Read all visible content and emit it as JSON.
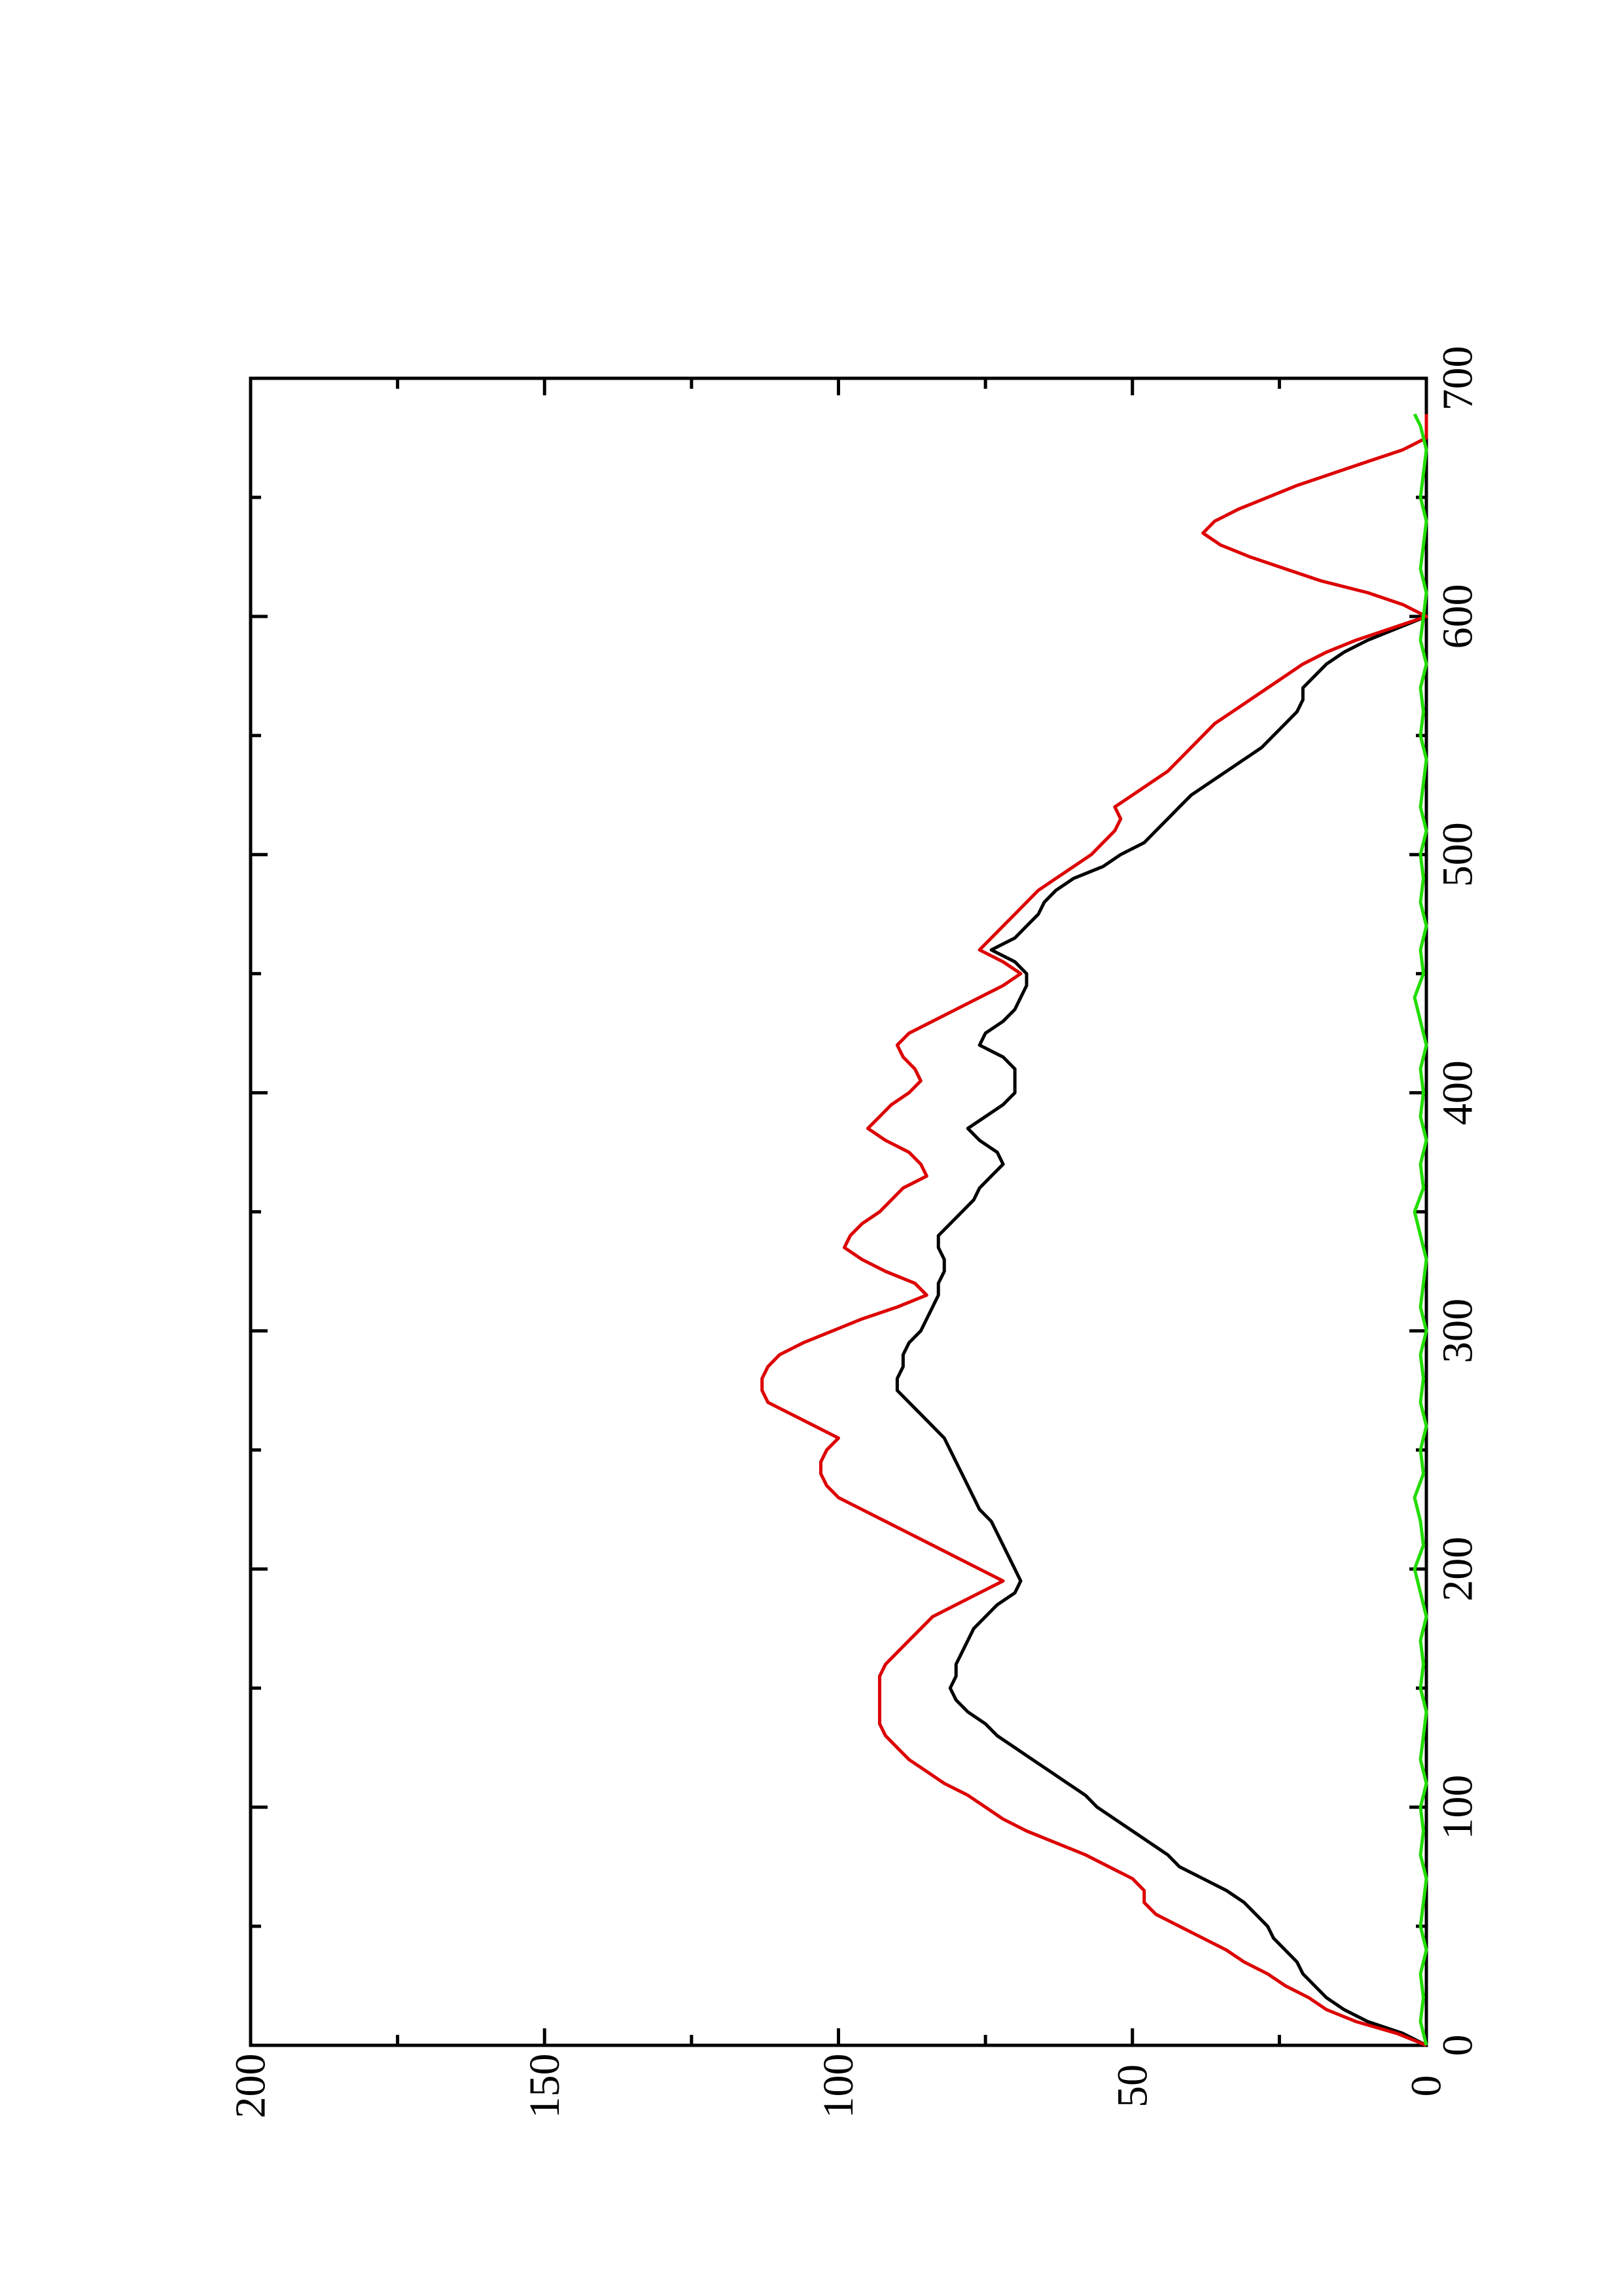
{
  "chart_data": {
    "type": "line",
    "orientation": "rotated-90-ccw",
    "title": "",
    "xlabel": "",
    "ylabel": "",
    "xlim": [
      0,
      700
    ],
    "ylim": [
      0,
      200
    ],
    "x_ticks": [
      0,
      100,
      200,
      300,
      400,
      500,
      600,
      700
    ],
    "y_ticks": [
      0,
      50,
      100,
      150,
      200
    ],
    "x_minor_step": 50,
    "y_minor_step": 25,
    "grid": false,
    "legend": "none",
    "series": [
      {
        "color": "#000000",
        "x": [
          0,
          5,
          10,
          15,
          20,
          25,
          30,
          35,
          40,
          45,
          50,
          55,
          60,
          65,
          70,
          75,
          80,
          85,
          90,
          95,
          100,
          105,
          110,
          115,
          120,
          125,
          130,
          135,
          140,
          145,
          150,
          155,
          160,
          165,
          170,
          175,
          180,
          185,
          190,
          195,
          200,
          205,
          210,
          215,
          220,
          225,
          230,
          235,
          240,
          245,
          250,
          255,
          260,
          265,
          270,
          275,
          280,
          285,
          290,
          295,
          300,
          305,
          310,
          315,
          320,
          325,
          330,
          335,
          340,
          345,
          350,
          355,
          360,
          365,
          370,
          375,
          380,
          385,
          390,
          395,
          400,
          405,
          410,
          415,
          420,
          425,
          430,
          435,
          440,
          445,
          450,
          455,
          460,
          465,
          470,
          475,
          480,
          485,
          490,
          495,
          500,
          505,
          510,
          515,
          520,
          525,
          530,
          535,
          540,
          545,
          550,
          555,
          560,
          565,
          570,
          575,
          580,
          585,
          590,
          595,
          600,
          605,
          610,
          615,
          620,
          625,
          630,
          635,
          640,
          645,
          650,
          655,
          660,
          665,
          670,
          675,
          680,
          685
        ],
        "values": [
          0,
          4,
          10,
          14,
          17,
          19,
          21,
          22,
          24,
          26,
          27,
          29,
          31,
          34,
          38,
          42,
          44,
          47,
          50,
          53,
          56,
          58,
          61,
          64,
          67,
          70,
          73,
          75,
          78,
          80,
          81,
          80,
          80,
          79,
          78,
          77,
          75,
          73,
          70,
          69,
          70,
          71,
          72,
          73,
          74,
          76,
          77,
          78,
          79,
          80,
          81,
          82,
          84,
          86,
          88,
          90,
          90,
          89,
          89,
          88,
          86,
          85,
          84,
          83,
          83,
          82,
          82,
          83,
          83,
          81,
          79,
          77,
          76,
          74,
          72,
          73,
          76,
          78,
          75,
          72,
          70,
          70,
          70,
          72,
          76,
          75,
          72,
          70,
          69,
          68,
          68,
          70,
          74,
          70,
          68,
          66,
          65,
          63,
          60,
          55,
          52,
          48,
          46,
          44,
          42,
          40,
          37,
          34,
          31,
          28,
          26,
          24,
          22,
          21,
          21,
          19,
          17,
          14,
          10,
          5,
          0,
          0,
          0,
          0,
          0,
          0,
          0,
          0,
          0,
          0,
          0,
          0,
          0,
          0,
          0,
          0,
          0,
          0
        ]
      },
      {
        "color": "#dd0000",
        "x": [
          0,
          5,
          10,
          15,
          20,
          25,
          30,
          35,
          40,
          45,
          50,
          55,
          60,
          65,
          70,
          75,
          80,
          85,
          90,
          95,
          100,
          105,
          110,
          115,
          120,
          125,
          130,
          135,
          140,
          145,
          150,
          155,
          160,
          165,
          170,
          175,
          180,
          185,
          190,
          195,
          200,
          205,
          210,
          215,
          220,
          225,
          230,
          235,
          240,
          245,
          250,
          255,
          260,
          265,
          270,
          275,
          280,
          285,
          290,
          295,
          300,
          305,
          310,
          315,
          320,
          325,
          330,
          335,
          340,
          345,
          350,
          355,
          360,
          365,
          370,
          375,
          380,
          385,
          390,
          395,
          400,
          405,
          410,
          415,
          420,
          425,
          430,
          435,
          440,
          445,
          450,
          455,
          460,
          465,
          470,
          475,
          480,
          485,
          490,
          495,
          500,
          505,
          510,
          515,
          520,
          525,
          530,
          535,
          540,
          545,
          550,
          555,
          560,
          565,
          570,
          575,
          580,
          585,
          590,
          595,
          600,
          605,
          610,
          615,
          620,
          625,
          630,
          635,
          640,
          645,
          650,
          655,
          660,
          665,
          670,
          675,
          680,
          685
        ],
        "values": [
          0,
          5,
          12,
          17,
          20,
          24,
          27,
          31,
          34,
          38,
          42,
          46,
          48,
          48,
          50,
          54,
          58,
          63,
          68,
          72,
          75,
          78,
          82,
          85,
          88,
          90,
          92,
          93,
          93,
          93,
          93,
          93,
          92,
          90,
          88,
          86,
          84,
          80,
          76,
          72,
          76,
          80,
          84,
          88,
          92,
          96,
          100,
          102,
          103,
          103,
          102,
          100,
          104,
          108,
          112,
          113,
          113,
          112,
          110,
          106,
          101,
          96,
          90,
          85,
          87,
          92,
          96,
          99,
          98,
          96,
          93,
          91,
          89,
          85,
          86,
          88,
          92,
          95,
          93,
          91,
          88,
          86,
          87,
          89,
          90,
          88,
          84,
          80,
          76,
          72,
          69,
          72,
          76,
          74,
          72,
          70,
          68,
          66,
          63,
          60,
          57,
          55,
          53,
          52,
          53,
          50,
          47,
          44,
          42,
          40,
          38,
          36,
          33,
          30,
          27,
          24,
          21,
          17,
          12,
          6,
          0,
          4,
          10,
          18,
          24,
          30,
          35,
          38,
          36,
          32,
          27,
          22,
          16,
          10,
          4,
          0,
          0,
          0
        ]
      },
      {
        "color": "#22dd00",
        "x": [
          0,
          10,
          20,
          30,
          40,
          50,
          60,
          70,
          80,
          90,
          100,
          110,
          120,
          130,
          140,
          150,
          160,
          170,
          180,
          190,
          200,
          210,
          220,
          230,
          240,
          250,
          260,
          270,
          280,
          290,
          300,
          310,
          320,
          330,
          340,
          350,
          360,
          370,
          380,
          390,
          400,
          410,
          420,
          430,
          440,
          450,
          460,
          470,
          480,
          490,
          500,
          510,
          520,
          530,
          540,
          550,
          560,
          570,
          580,
          590,
          600,
          610,
          620,
          630,
          640,
          650,
          660,
          670,
          680,
          685
        ],
        "values": [
          0,
          1,
          0.5,
          1,
          0,
          1,
          0.5,
          0,
          1,
          0.5,
          1,
          0,
          1,
          0.5,
          0,
          1,
          0.5,
          1,
          0,
          1,
          2,
          0.5,
          1,
          2,
          0.5,
          1,
          0,
          1,
          0.5,
          1,
          0,
          1,
          0.5,
          0,
          1,
          2,
          0.5,
          1,
          0,
          1,
          0.5,
          1,
          0,
          1,
          2,
          0.5,
          1,
          0,
          1,
          0.5,
          1,
          0,
          1,
          0.5,
          0,
          1,
          0.5,
          1,
          0,
          1,
          0.5,
          0,
          1,
          0.5,
          0,
          1,
          0.5,
          0,
          1,
          2
        ]
      }
    ]
  }
}
